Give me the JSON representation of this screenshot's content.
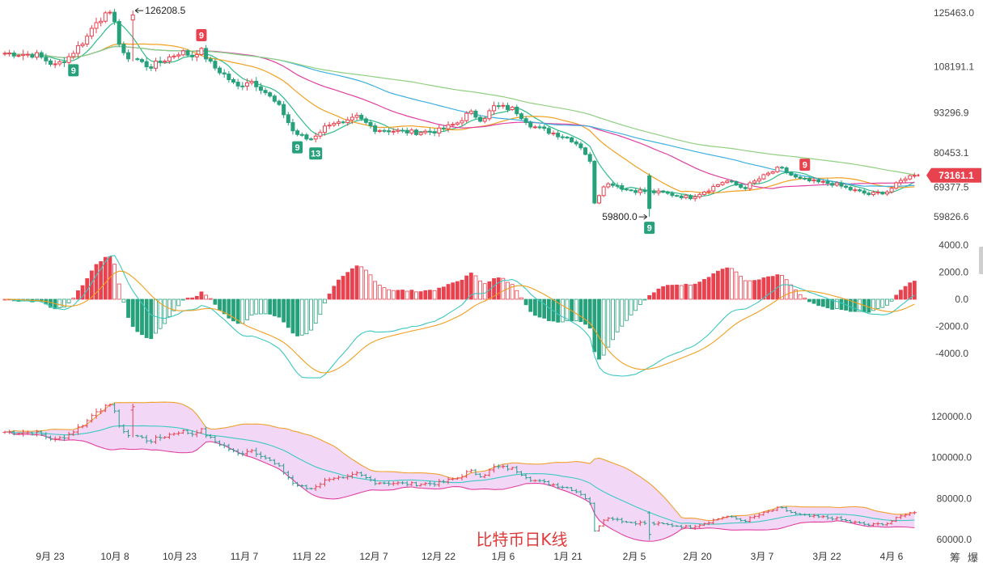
{
  "chart_data": [
    {
      "type": "candlestick",
      "panel": "price",
      "title": "比特币日K线",
      "y_ticks": [
        125463.0,
        108191.1,
        93296.9,
        80453.1,
        69377.5,
        59826.6
      ],
      "ylim": [
        56000,
        130000
      ],
      "last_price": 73161.1,
      "annotations": [
        {
          "label": "126208.5",
          "x": "2025-10-06",
          "y": 126208.5
        },
        {
          "label": "59800.0",
          "x": "2026-02-05",
          "y": 59800.0
        }
      ],
      "td_counts": [
        {
          "label": "9",
          "x": "2025-09-25",
          "kind": "buy"
        },
        {
          "label": "9",
          "x": "2025-10-27",
          "kind": "sell"
        },
        {
          "label": "9",
          "x": "2025-11-21",
          "kind": "buy"
        },
        {
          "label": "13",
          "x": "2025-11-23",
          "kind": "buy"
        },
        {
          "label": "9",
          "x": "2026-02-05",
          "kind": "buy"
        },
        {
          "label": "9",
          "x": "2026-03-18",
          "kind": "sell"
        }
      ],
      "moving_averages": [
        "#2ebd85",
        "#f0a020",
        "#e040a0",
        "#3cb0e0",
        "#90d080"
      ],
      "up_color": "#e8424f",
      "down_color": "#26a17b"
    },
    {
      "type": "bar",
      "panel": "macd",
      "y_ticks": [
        4000.0,
        2000.0,
        0.0,
        -2000.0,
        -4000.0
      ],
      "ylim": [
        -6000,
        4600
      ],
      "lines": [
        "#3cc8c0",
        "#f0a020"
      ]
    },
    {
      "type": "area",
      "panel": "bollinger",
      "y_ticks": [
        120000.0,
        100000.0,
        80000.0,
        60000.0
      ],
      "ylim": [
        56000,
        132000
      ],
      "band_fill": "#f2d8f6",
      "upper_color": "#f0a030",
      "lower_color": "#e040a0",
      "middle_color": "#3cc8c0"
    }
  ],
  "x_axis": {
    "labels": [
      "9月 23",
      "10月 8",
      "10月 23",
      "11月 7",
      "11月 22",
      "12月 7",
      "12月 22",
      "1月 6",
      "1月 21",
      "2月 5",
      "2月 20",
      "3月 7",
      "3月 22",
      "4月 6"
    ]
  },
  "watermark": "比特币日K线",
  "corner_labels": [
    "筹",
    "爆"
  ]
}
